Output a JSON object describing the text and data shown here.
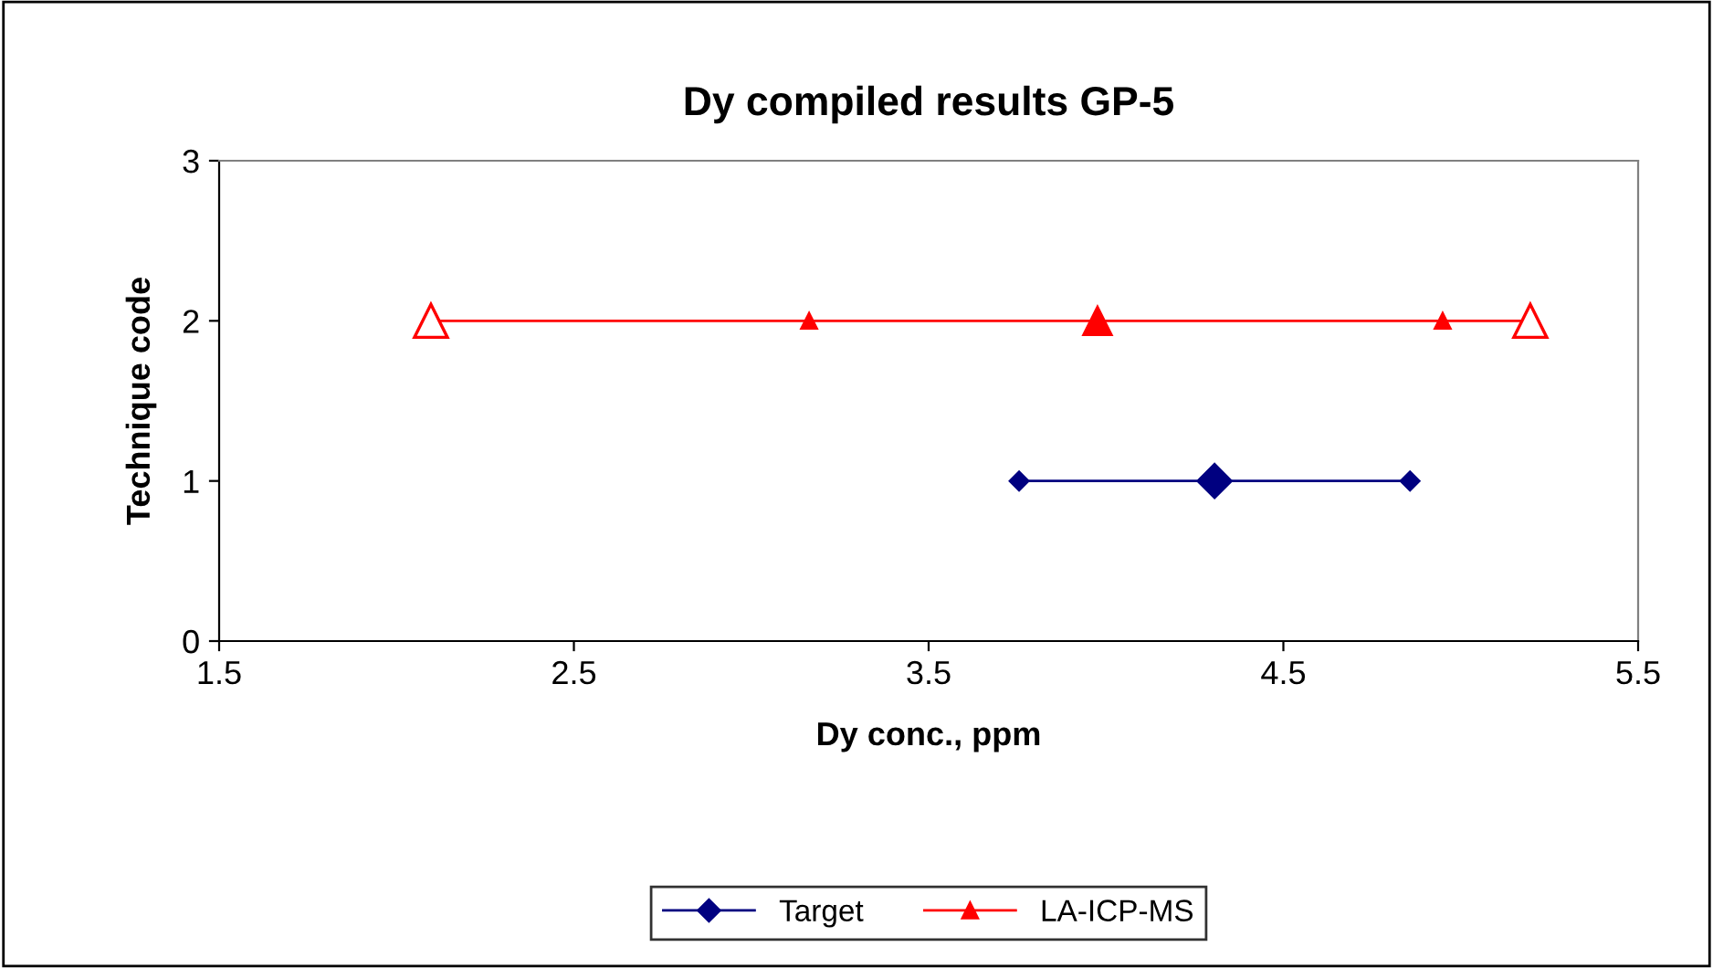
{
  "chart_data": {
    "type": "line",
    "title": "Dy compiled results GP-5",
    "xlabel": "Dy conc., ppm",
    "ylabel": "Technique code",
    "xlim": [
      1.5,
      5.5
    ],
    "xticks": [
      1.5,
      2.5,
      3.5,
      4.5,
      5.5
    ],
    "ylim": [
      0,
      3
    ],
    "yticks": [
      0,
      1,
      2,
      3
    ],
    "grid": false,
    "legend": "bottom",
    "series": [
      {
        "name": "Target",
        "color": "#000080",
        "marker": "diamond",
        "x": [
          3.755,
          4.306,
          4.857
        ],
        "values": [
          1,
          1,
          1
        ]
      },
      {
        "type": "scatter",
        "color": "#000080",
        "marker": "diamond",
        "x": [
          4.306
        ],
        "values": [
          1
        ]
      },
      {
        "name": "LA-ICP-MS",
        "color": "#ff0000",
        "marker": "triangle",
        "x": [
          2.097,
          3.163,
          3.976,
          4.949,
          5.196
        ],
        "values": [
          2,
          2,
          2,
          2,
          2
        ],
        "colors": [
          "#ffffff",
          "#ff0000",
          "#ff0000",
          "#ff0000",
          "#ffffff"
        ]
      },
      {
        "type": "scatter",
        "color": "#ff0000",
        "marker": "triangle",
        "x": [
          3.976
        ],
        "values": [
          2
        ]
      }
    ]
  }
}
